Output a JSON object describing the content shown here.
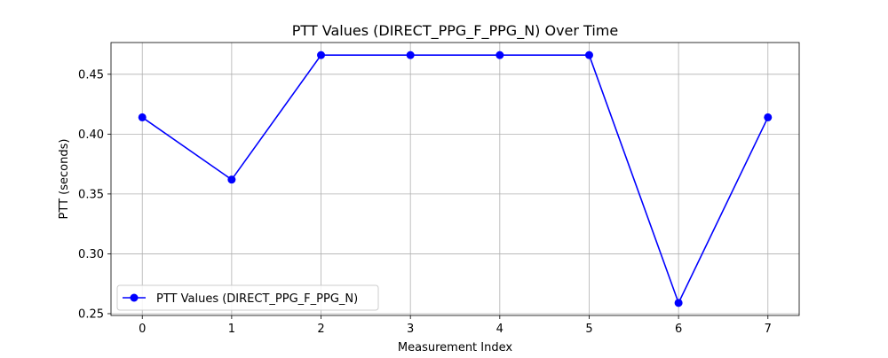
{
  "chart_data": {
    "type": "line",
    "title": "PTT Values (DIRECT_PPG_F_PPG_N) Over Time",
    "xlabel": "Measurement Index",
    "ylabel": "PTT (seconds)",
    "x": [
      0,
      1,
      2,
      3,
      4,
      5,
      6,
      7
    ],
    "series": [
      {
        "name": "PTT Values (DIRECT_PPG_F_PPG_N)",
        "values": [
          0.414,
          0.362,
          0.466,
          0.466,
          0.466,
          0.466,
          0.259,
          0.414
        ],
        "color": "#0000ff",
        "marker": "circle"
      }
    ],
    "xlim": [
      -0.35,
      7.35
    ],
    "ylim": [
      0.2485,
      0.4765
    ],
    "x_ticks": [
      "0",
      "1",
      "2",
      "3",
      "4",
      "5",
      "6",
      "7"
    ],
    "y_ticks": [
      "0.25",
      "0.30",
      "0.35",
      "0.40",
      "0.45"
    ],
    "y_tick_values": [
      0.25,
      0.3,
      0.35,
      0.4,
      0.45
    ],
    "grid": true,
    "legend_position": "lower-left"
  }
}
